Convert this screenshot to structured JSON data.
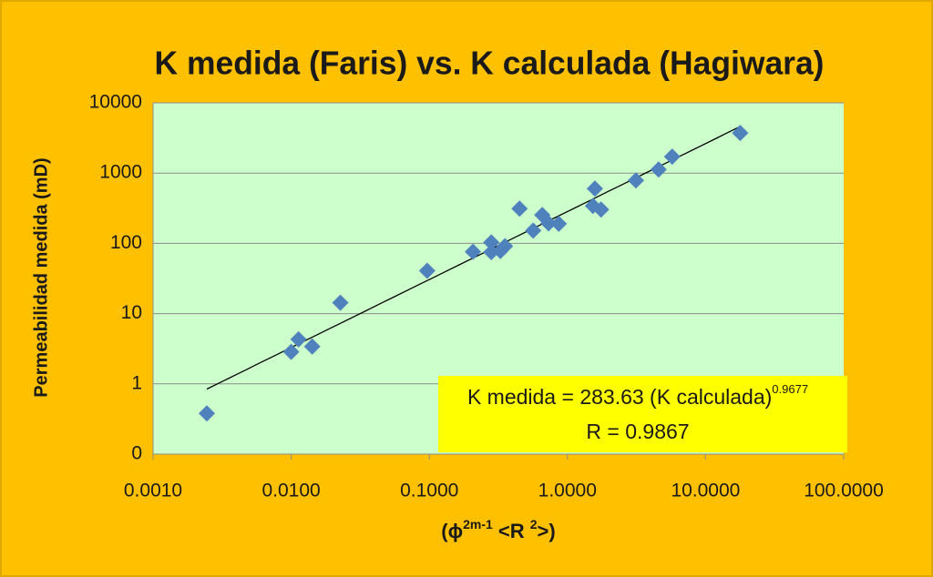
{
  "chart_data": {
    "type": "scatter",
    "title": "K medida (Faris)  vs.  K calculada (Hagiwara)",
    "y_label": "Permeabilidad medida  (mD)",
    "x_label": [
      "(ϕ",
      "2m-1",
      " <R ",
      "2",
      ">)"
    ],
    "x": [
      0.00245,
      0.01,
      0.0113,
      0.0142,
      0.0227,
      0.0965,
      0.207,
      0.281,
      0.281,
      0.327,
      0.353,
      0.45,
      0.565,
      0.657,
      0.73,
      0.865,
      1.53,
      1.58,
      1.75,
      3.13,
      4.57,
      5.73,
      17.8
    ],
    "series": [
      {
        "color": "#4f81bd",
        "values": [
          0.38,
          2.85,
          4.3,
          3.4,
          14.3,
          40.8,
          76,
          103,
          75,
          78,
          91,
          312,
          152,
          253,
          193,
          190,
          341,
          602,
          303,
          787,
          1127,
          1712,
          3720
        ]
      }
    ],
    "trendline": {
      "coefficient": 283.63,
      "exponent": 0.9677,
      "color": "#000000"
    },
    "annotation": {
      "line1": "K medida = 283.63 (K calculada)",
      "superscript": "0.9677",
      "line2": "R = 0.9867"
    },
    "xscale": "log",
    "yscale": "log",
    "xlim": [
      0.001,
      100
    ],
    "ylim": [
      0.1,
      10000
    ],
    "xticks": [
      {
        "value": 0.001,
        "label": "0.0010"
      },
      {
        "value": 0.01,
        "label": "0.0100"
      },
      {
        "value": 0.1,
        "label": "0.1000"
      },
      {
        "value": 1,
        "label": "1.0000"
      },
      {
        "value": 10,
        "label": "10.0000"
      },
      {
        "value": 100,
        "label": "100.0000"
      }
    ],
    "yticks": [
      {
        "value": 0.1,
        "label": "0"
      },
      1,
      10,
      100,
      1000,
      10000
    ],
    "grid": true
  }
}
